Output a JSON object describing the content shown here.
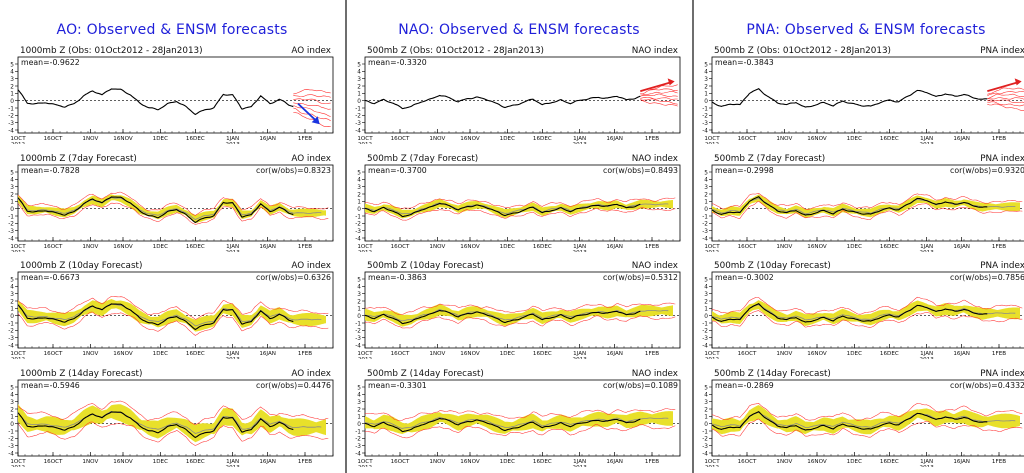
{
  "columns": [
    {
      "key": "ao",
      "title": "AO: Observed & ENSM forecasts",
      "index_label": "AO index",
      "level": "1000mb Z",
      "panels": [
        {
          "kind": "obs",
          "label": "1000mb Z (Obs: 01Oct2012 - 28Jan2013)",
          "right": "AO index",
          "mean": "mean=-0.9622",
          "corr": ""
        },
        {
          "kind": "fc",
          "lead": 7,
          "label": "1000mb Z (7day Forecast)",
          "right": "AO index",
          "mean": "mean=-0.7828",
          "corr": "cor(w/obs)=0.8323"
        },
        {
          "kind": "fc",
          "lead": 10,
          "label": "1000mb Z (10day Forecast)",
          "right": "AO index",
          "mean": "mean=-0.6673",
          "corr": "cor(w/obs)=0.6326"
        },
        {
          "kind": "fc",
          "lead": 14,
          "label": "1000mb Z (14day Forecast)",
          "right": "AO index",
          "mean": "mean=-0.5946",
          "corr": "cor(w/obs)=0.4476"
        }
      ]
    },
    {
      "key": "nao",
      "title": "NAO: Observed & ENSM forecasts",
      "index_label": "NAO index",
      "level": "500mb Z",
      "panels": [
        {
          "kind": "obs",
          "label": "500mb Z (Obs: 01Oct2012 - 28Jan2013)",
          "right": "NAO index",
          "mean": "mean=-0.3320",
          "corr": ""
        },
        {
          "kind": "fc",
          "lead": 7,
          "label": "500mb Z (7day Forecast)",
          "right": "NAO index",
          "mean": "mean=-0.3700",
          "corr": "cor(w/obs)=0.8493"
        },
        {
          "kind": "fc",
          "lead": 10,
          "label": "500mb Z (10day Forecast)",
          "right": "NAO index",
          "mean": "mean=-0.3863",
          "corr": "cor(w/obs)=0.5312"
        },
        {
          "kind": "fc",
          "lead": 14,
          "label": "500mb Z (14day Forecast)",
          "right": "NAO index",
          "mean": "mean=-0.3301",
          "corr": "cor(w/obs)=0.1089"
        }
      ]
    },
    {
      "key": "pna",
      "title": "PNA: Observed & ENSM forecasts",
      "index_label": "PNA index",
      "level": "500mb Z",
      "panels": [
        {
          "kind": "obs",
          "label": "500mb Z (Obs: 01Oct2012 - 28Jan2013)",
          "right": "PNA index",
          "mean": "mean=-0.3843",
          "corr": ""
        },
        {
          "kind": "fc",
          "lead": 7,
          "label": "500mb Z (7day Forecast)",
          "right": "PNA index",
          "mean": "mean=-0.2998",
          "corr": "cor(w/obs)=0.9320"
        },
        {
          "kind": "fc",
          "lead": 10,
          "label": "500mb Z (10day Forecast)",
          "right": "PNA index",
          "mean": "mean=-0.3002",
          "corr": "cor(w/obs)=0.7856"
        },
        {
          "kind": "fc",
          "lead": 14,
          "label": "500mb Z (14day Forecast)",
          "right": "PNA index",
          "mean": "mean=-0.2869",
          "corr": "cor(w/obs)=0.4332"
        }
      ]
    }
  ],
  "axis": {
    "yticks": [
      -4,
      -3,
      -2,
      -1,
      0,
      1,
      2,
      3,
      4,
      5
    ],
    "xticks": [
      {
        "day": 0,
        "label": "1OCT",
        "sub": "2012"
      },
      {
        "day": 15,
        "label": "16OCT",
        "sub": ""
      },
      {
        "day": 31,
        "label": "1NOV",
        "sub": ""
      },
      {
        "day": 45,
        "label": "16NOV",
        "sub": ""
      },
      {
        "day": 61,
        "label": "1DEC",
        "sub": ""
      },
      {
        "day": 76,
        "label": "16DEC",
        "sub": ""
      },
      {
        "day": 92,
        "label": "1JAN",
        "sub": "2013"
      },
      {
        "day": 107,
        "label": "16JAN",
        "sub": ""
      },
      {
        "day": 123,
        "label": "1FEB",
        "sub": ""
      }
    ],
    "xmax": 135,
    "ylim": [
      -4,
      5
    ]
  },
  "chart_data": [
    {
      "type": "line",
      "title": "AO: Observed & ENSM forecasts",
      "ylabel": "AO index",
      "x_unit": "days since 1 Oct 2012",
      "ylim": [
        -4,
        5
      ],
      "observed": {
        "x": [
          0,
          4,
          8,
          12,
          16,
          20,
          24,
          28,
          32,
          36,
          40,
          44,
          48,
          52,
          56,
          60,
          64,
          68,
          72,
          76,
          80,
          84,
          88,
          92,
          96,
          100,
          104,
          108,
          112,
          116,
          118
        ],
        "y": [
          1.5,
          -0.3,
          -0.4,
          -0.3,
          -0.6,
          -0.8,
          -0.4,
          0.6,
          1.3,
          0.8,
          1.7,
          1.5,
          0.8,
          -0.3,
          -0.9,
          -1.2,
          -0.5,
          -0.1,
          -0.8,
          -1.8,
          -1.3,
          -1.0,
          0.9,
          0.8,
          -1.1,
          -0.9,
          0.7,
          -0.4,
          0.2,
          -0.6,
          -0.8
        ]
      },
      "ensemble_forecast": {
        "x": [
          118,
          122,
          126,
          130,
          134
        ],
        "mean": [
          -0.8,
          -0.5,
          -0.2,
          -0.6,
          -1.0
        ],
        "min": [
          -1.5,
          -2.2,
          -2.6,
          -3.2,
          -3.6
        ],
        "max": [
          1.0,
          1.3,
          1.5,
          1.3,
          1.2
        ]
      },
      "forecasts": {
        "lead7": {
          "mean_offset": 0.1,
          "spread": 0.6
        },
        "lead10": {
          "mean_offset": 0.15,
          "spread": 0.9
        },
        "lead14": {
          "mean_offset": 0.2,
          "spread": 1.2
        }
      },
      "annotation": "blue arrow pointing down at end of record"
    },
    {
      "type": "line",
      "title": "NAO: Observed & ENSM forecasts",
      "ylabel": "NAO index",
      "x_unit": "days since 1 Oct 2012",
      "ylim": [
        -4,
        5
      ],
      "observed": {
        "x": [
          0,
          4,
          8,
          12,
          16,
          20,
          24,
          28,
          32,
          36,
          40,
          44,
          48,
          52,
          56,
          60,
          64,
          68,
          72,
          76,
          80,
          84,
          88,
          92,
          96,
          100,
          104,
          108,
          112,
          116,
          118
        ],
        "y": [
          0.0,
          -0.4,
          0.1,
          -0.3,
          -1.0,
          -0.8,
          -0.2,
          0.2,
          0.8,
          0.4,
          -0.2,
          0.3,
          0.5,
          0.2,
          -0.4,
          -0.9,
          -0.6,
          -0.2,
          0.2,
          -0.6,
          -0.2,
          0.1,
          -0.4,
          0.0,
          0.3,
          0.5,
          0.3,
          0.6,
          0.1,
          0.4,
          0.6
        ]
      },
      "ensemble_forecast": {
        "x": [
          118,
          122,
          126,
          130,
          134
        ],
        "mean": [
          0.6,
          0.9,
          1.0,
          0.8,
          0.6
        ],
        "min": [
          0.0,
          -0.2,
          -0.4,
          -0.6,
          -0.8
        ],
        "max": [
          1.2,
          1.6,
          1.9,
          2.0,
          2.0
        ]
      },
      "forecasts": {
        "lead7": {
          "mean_offset": 0.1,
          "spread": 0.6
        },
        "lead10": {
          "mean_offset": 0.15,
          "spread": 0.8
        },
        "lead14": {
          "mean_offset": 0.2,
          "spread": 1.0
        }
      },
      "annotation": "red arrow pointing up at end of record"
    },
    {
      "type": "line",
      "title": "PNA: Observed & ENSM forecasts",
      "ylabel": "PNA index",
      "x_unit": "days since 1 Oct 2012",
      "ylim": [
        -4,
        5
      ],
      "observed": {
        "x": [
          0,
          4,
          8,
          12,
          16,
          20,
          24,
          28,
          32,
          36,
          40,
          44,
          48,
          52,
          56,
          60,
          64,
          68,
          72,
          76,
          80,
          84,
          88,
          92,
          96,
          100,
          104,
          108,
          112,
          116,
          118
        ],
        "y": [
          -0.2,
          -0.8,
          -0.4,
          -0.6,
          1.0,
          1.6,
          0.6,
          -0.3,
          -0.6,
          -0.2,
          -0.9,
          -0.6,
          -0.3,
          -0.7,
          0.0,
          -0.4,
          -0.7,
          -0.8,
          -0.2,
          0.1,
          -0.2,
          0.6,
          1.4,
          1.2,
          0.5,
          0.9,
          0.6,
          0.9,
          0.4,
          0.1,
          0.2
        ]
      },
      "ensemble_forecast": {
        "x": [
          118,
          122,
          126,
          130,
          134
        ],
        "mean": [
          0.2,
          0.5,
          0.8,
          0.6,
          0.3
        ],
        "min": [
          -0.4,
          -0.6,
          -0.9,
          -1.1,
          -1.2
        ],
        "max": [
          0.8,
          1.4,
          1.6,
          1.7,
          1.6
        ]
      },
      "forecasts": {
        "lead7": {
          "mean_offset": 0.1,
          "spread": 0.6
        },
        "lead10": {
          "mean_offset": 0.15,
          "spread": 0.8
        },
        "lead14": {
          "mean_offset": 0.2,
          "spread": 1.0
        }
      },
      "annotation": "red arrow pointing up at end of record"
    }
  ],
  "colors": {
    "title": "#1f1fd9",
    "observed": "#000000",
    "ensemble": "#ff3030",
    "spread": "#e8e02a",
    "divider": "#6e6e6e",
    "arrow_up": "#e02020",
    "arrow_down": "#1a34e0"
  }
}
